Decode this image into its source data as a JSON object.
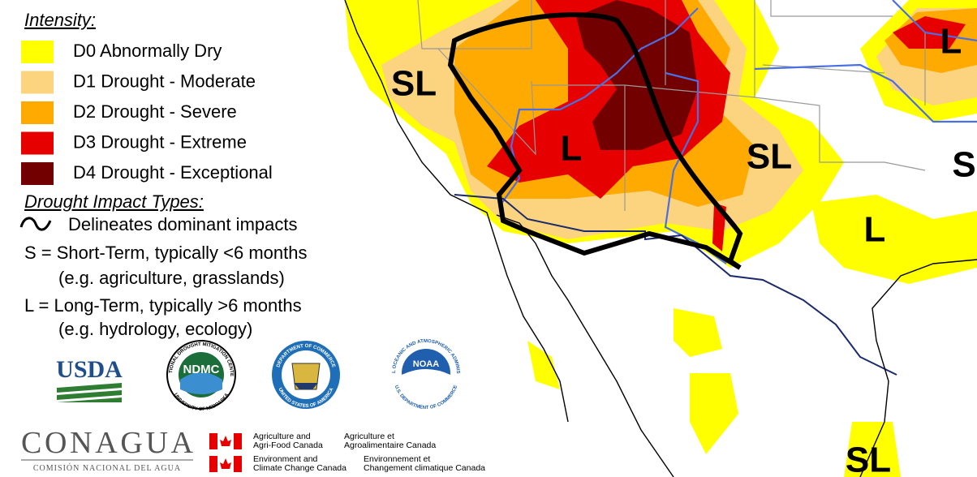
{
  "legend": {
    "intensity_title": "Intensity:",
    "items": [
      {
        "name": "D0 Abnormally Dry",
        "color": "#ffff00"
      },
      {
        "name": "D1 Drought - Moderate",
        "color": "#fcd37f"
      },
      {
        "name": "D2 Drought - Severe",
        "color": "#ffaa00"
      },
      {
        "name": "D3 Drought - Extreme",
        "color": "#e60000"
      },
      {
        "name": "D4 Drought - Exceptional",
        "color": "#730000"
      }
    ],
    "impact_title": "Drought Impact Types:",
    "impact_lines": [
      "Delineates dominant impacts",
      "S = Short-Term, typically <6 months",
      "(e.g. agriculture, grasslands)",
      "L = Long-Term, typically >6 months",
      "(e.g. hydrology, ecology)"
    ]
  },
  "map_labels": [
    "SL",
    "L",
    "SL",
    "L",
    "L",
    "S",
    "SL"
  ],
  "logos": {
    "usda": "USDA",
    "ndmc": "NDMC",
    "ndmc_ring_top": "NATIONAL DROUGHT MITIGATION CENTER",
    "ndmc_ring_bottom": "UNIVERSITY OF NEBRASKA",
    "doc_ring_top": "DEPARTMENT OF COMMERCE",
    "doc_ring_bottom": "UNITED STATES OF AMERICA",
    "noaa": "NOAA",
    "noaa_ring_top": "NATIONAL OCEANIC AND ATMOSPHERIC ADMINISTRATION",
    "noaa_ring_bottom": "U.S. DEPARTMENT OF COMMERCE",
    "conagua": "CONAGUA",
    "conagua_sub": "COMISIÓN NACIONAL DEL AGUA",
    "canada": [
      "Agriculture and",
      "Agri-Food Canada",
      "Agriculture et",
      "Agroalimentaire Canada",
      "Environment and",
      "Climate Change Canada",
      "Environnement et",
      "Changement climatique Canada"
    ]
  }
}
